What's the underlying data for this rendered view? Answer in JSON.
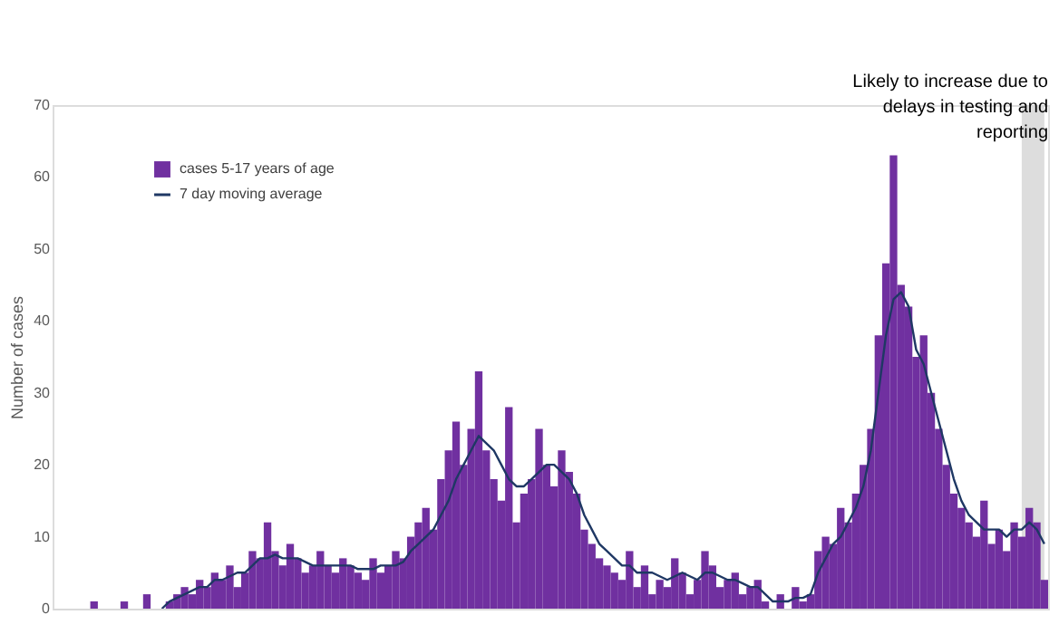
{
  "chart_data": {
    "type": "bar",
    "ylabel": "Number of cases",
    "categories": [
      null,
      null,
      null,
      null,
      null,
      null,
      null,
      null,
      null,
      null,
      null,
      null,
      null,
      null,
      null,
      null,
      null,
      null,
      null,
      null,
      null,
      null,
      null,
      null,
      null,
      null,
      null,
      null,
      null,
      null,
      null,
      null,
      null,
      null,
      null,
      null,
      null,
      null,
      null,
      null,
      null,
      null,
      null,
      null,
      null,
      null,
      null,
      null,
      null,
      null,
      null,
      null,
      null,
      null,
      null,
      null,
      null,
      null,
      null,
      null,
      null,
      null,
      null,
      null,
      null,
      null,
      null,
      null,
      null,
      null,
      null,
      null,
      null,
      null,
      null,
      null,
      null,
      null,
      null,
      null,
      null,
      null,
      null,
      null,
      null,
      null,
      null,
      null,
      null,
      null,
      null,
      null,
      null,
      null,
      null,
      null,
      null,
      null,
      null,
      null,
      null,
      null,
      null,
      null,
      null,
      null,
      null,
      null,
      null,
      null,
      null,
      null,
      null,
      null,
      null,
      null,
      null,
      null,
      null,
      null,
      null,
      null,
      null,
      null,
      null,
      null,
      null,
      null,
      null,
      null,
      null,
      null
    ],
    "series": [
      {
        "name": "cases 5-17 years of age",
        "color": "#7030a0",
        "values": [
          0,
          0,
          0,
          0,
          0,
          1,
          0,
          0,
          0,
          1,
          0,
          0,
          2,
          0,
          0,
          1,
          2,
          3,
          2,
          4,
          3,
          5,
          4,
          6,
          3,
          5,
          8,
          7,
          12,
          8,
          6,
          9,
          7,
          5,
          6,
          8,
          6,
          5,
          7,
          6,
          5,
          4,
          7,
          5,
          6,
          8,
          7,
          10,
          12,
          14,
          11,
          18,
          22,
          26,
          20,
          25,
          33,
          22,
          18,
          15,
          28,
          12,
          16,
          18,
          25,
          20,
          17,
          22,
          19,
          16,
          11,
          9,
          7,
          6,
          5,
          4,
          8,
          3,
          6,
          2,
          4,
          3,
          7,
          5,
          2,
          4,
          8,
          6,
          3,
          4,
          5,
          2,
          3,
          4,
          1,
          0,
          2,
          0,
          3,
          1,
          2,
          8,
          10,
          9,
          14,
          12,
          16,
          20,
          25,
          38,
          48,
          63,
          45,
          42,
          35,
          38,
          30,
          25,
          20,
          16,
          14,
          12,
          10,
          15,
          9,
          11,
          8,
          12,
          10,
          14,
          12,
          4
        ]
      },
      {
        "name": "7 day moving average",
        "type": "line",
        "color": "#1f3864",
        "values": [
          null,
          null,
          null,
          null,
          null,
          null,
          null,
          null,
          null,
          null,
          null,
          null,
          null,
          null,
          0,
          1,
          1.5,
          2,
          2.5,
          3,
          3,
          4,
          4,
          4.5,
          5,
          5,
          6,
          7,
          7,
          7.5,
          7,
          7,
          7,
          6.5,
          6,
          6,
          6,
          6,
          6,
          6,
          5.5,
          5.5,
          5.5,
          6,
          6,
          6,
          6.5,
          8,
          9,
          10,
          11,
          13,
          15,
          18,
          20,
          22,
          24,
          23,
          22,
          20,
          18,
          17,
          17,
          18,
          19,
          20,
          20,
          19,
          18,
          16,
          13,
          11,
          9,
          8,
          7,
          6,
          6,
          5,
          5,
          5,
          4.5,
          4,
          4.5,
          5,
          4.5,
          4,
          5,
          5,
          4.5,
          4,
          4,
          3.5,
          3,
          3,
          2,
          1,
          1,
          1,
          1.5,
          1.5,
          2,
          5,
          7,
          9,
          10,
          12,
          14,
          17,
          22,
          30,
          38,
          43,
          44,
          42,
          36,
          34,
          30,
          26,
          22,
          18,
          15,
          13,
          12,
          11,
          11,
          11,
          10,
          11,
          11,
          12,
          11,
          9
        ]
      }
    ],
    "ylim": [
      0,
      70
    ],
    "yticks": [
      0,
      10,
      20,
      30,
      40,
      50,
      60,
      70
    ],
    "annotations": [
      "Likely to increase due to delays in testing and reporting"
    ],
    "legend": "top left",
    "grid": false,
    "tick_labels": "y"
  }
}
